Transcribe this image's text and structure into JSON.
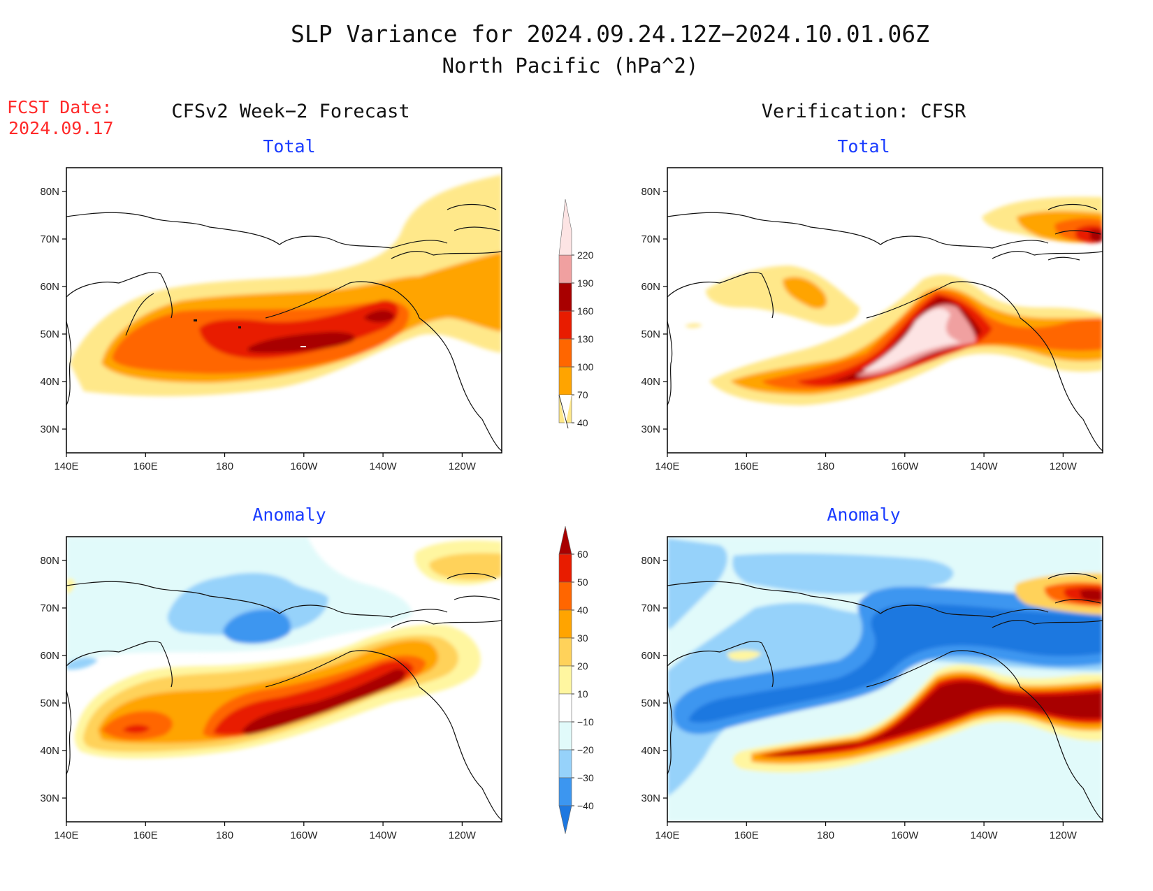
{
  "title": {
    "line1": "SLP Variance for 2024.09.24.12Z−2024.10.01.06Z",
    "line2": "North Pacific (hPa^2)"
  },
  "fcst": {
    "label": "FCST Date:",
    "date": "2024.09.17"
  },
  "columns": {
    "left": "CFSv2 Week−2 Forecast",
    "right": "Verification: CFSR"
  },
  "panels": {
    "total_label": "Total",
    "anomaly_label": "Anomaly"
  },
  "axes": {
    "lat_ticks": [
      "30N",
      "40N",
      "50N",
      "60N",
      "70N",
      "80N"
    ],
    "lon_ticks": [
      "140E",
      "160E",
      "180",
      "160W",
      "140W",
      "120W"
    ]
  },
  "colorbar_total": {
    "levels": [
      "40",
      "70",
      "100",
      "130",
      "160",
      "190",
      "220"
    ],
    "colors": [
      "#ffe88a",
      "#ffa400",
      "#ff6600",
      "#e81c00",
      "#a80000",
      "#f0a0a0",
      "#fde4e4"
    ]
  },
  "colorbar_anomaly": {
    "levels": [
      "−40",
      "−30",
      "−20",
      "−10",
      "10",
      "20",
      "30",
      "40",
      "50",
      "60"
    ],
    "colors": [
      "#1e78e0",
      "#3c96f0",
      "#96d2fa",
      "#e1fafa",
      "#ffffff",
      "#fff6a0",
      "#ffd25a",
      "#ffa400",
      "#ff6600",
      "#e81c00",
      "#a80000"
    ]
  },
  "chart_data": [
    {
      "type": "heatmap",
      "title": "CFSv2 Week−2 Forecast — Total",
      "xlabel": "",
      "ylabel": "",
      "xlim": [
        "140E",
        "110W"
      ],
      "ylim": [
        "25N",
        "85N"
      ],
      "features": [
        {
          "level": "40-70",
          "desc": "broad band 40N-60N from 145E to 110W, extending north toward 80N east of 130W"
        },
        {
          "level": "70-100",
          "desc": "band 40N-58N 155E-135W, and 50N-70N 135W-110W"
        },
        {
          "level": "100-130",
          "desc": "core 42N-55N 165E-140W"
        },
        {
          "level": "130-160",
          "desc": "core 45N-52N 175E-145W"
        },
        {
          "level": "160-190",
          "desc": "small core near 47N 165W"
        }
      ]
    },
    {
      "type": "heatmap",
      "title": "Verification: CFSR — Total",
      "xlabel": "",
      "ylabel": "",
      "xlim": [
        "140E",
        "110W"
      ],
      "ylim": [
        "25N",
        "85N"
      ],
      "features": [
        {
          "level": "40-70",
          "desc": "band from 150E 40N to 130W 55N; patch 55N-60N 150E-180; Arctic patch near 75N 120W"
        },
        {
          "level": "130-190",
          "desc": "core from 175W 40N to 140W 58N"
        },
        {
          "level": ">220",
          "desc": "core 44N-57N 160W-143W"
        }
      ]
    },
    {
      "type": "heatmap",
      "title": "CFSv2 Week−2 Forecast — Anomaly",
      "xlabel": "",
      "ylabel": "",
      "xlim": [
        "140E",
        "110W"
      ],
      "ylim": [
        "25N",
        "85N"
      ],
      "features": [
        {
          "level": "-10 to -20",
          "desc": "negative over Bering/Alaska 60N-72N"
        },
        {
          "level": "-20 to -30",
          "desc": "core near 62N 170W"
        },
        {
          "level": "10-60",
          "desc": "positive band 40N-58N from 150E to 125W, strongest (>60) 44N-55N 175W-135W"
        }
      ]
    },
    {
      "type": "heatmap",
      "title": "Verification: CFSR — Anomaly",
      "xlabel": "",
      "ylabel": "",
      "xlim": [
        "140E",
        "110W"
      ],
      "ylim": [
        "25N",
        "85N"
      ],
      "features": [
        {
          "level": "-30 to -40",
          "desc": "strong negative band from 145E 45N through Alaska to 110W 65N"
        },
        {
          "level": ">60",
          "desc": "strong positive band from 175E 40N to 110W 52N"
        },
        {
          "level": "30-60",
          "desc": "Arctic positive patch near 72N 115W"
        }
      ]
    }
  ]
}
